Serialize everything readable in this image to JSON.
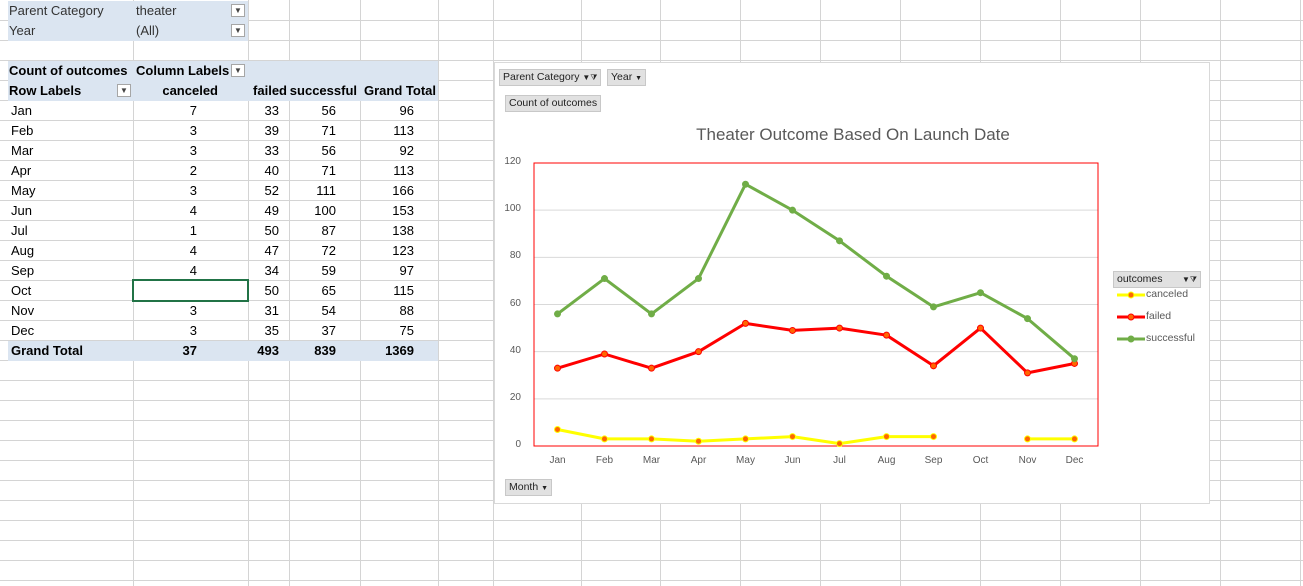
{
  "filters": [
    {
      "label": "Parent Category",
      "value": "theater"
    },
    {
      "label": "Year",
      "value": "(All)"
    }
  ],
  "pivot": {
    "value_label": "Count of outcomes",
    "column_labels": "Column Labels",
    "row_labels": "Row Labels",
    "columns": [
      "canceled",
      "failed",
      "successful",
      "Grand Total"
    ],
    "rows": [
      {
        "label": "Jan",
        "canceled": "7",
        "failed": "33",
        "successful": "56",
        "total": "96"
      },
      {
        "label": "Feb",
        "canceled": "3",
        "failed": "39",
        "successful": "71",
        "total": "113"
      },
      {
        "label": "Mar",
        "canceled": "3",
        "failed": "33",
        "successful": "56",
        "total": "92"
      },
      {
        "label": "Apr",
        "canceled": "2",
        "failed": "40",
        "successful": "71",
        "total": "113"
      },
      {
        "label": "May",
        "canceled": "3",
        "failed": "52",
        "successful": "111",
        "total": "166"
      },
      {
        "label": "Jun",
        "canceled": "4",
        "failed": "49",
        "successful": "100",
        "total": "153"
      },
      {
        "label": "Jul",
        "canceled": "1",
        "failed": "50",
        "successful": "87",
        "total": "138"
      },
      {
        "label": "Aug",
        "canceled": "4",
        "failed": "47",
        "successful": "72",
        "total": "123"
      },
      {
        "label": "Sep",
        "canceled": "4",
        "failed": "34",
        "successful": "59",
        "total": "97"
      },
      {
        "label": "Oct",
        "canceled": "",
        "failed": "50",
        "successful": "65",
        "total": "115"
      },
      {
        "label": "Nov",
        "canceled": "3",
        "failed": "31",
        "successful": "54",
        "total": "88"
      },
      {
        "label": "Dec",
        "canceled": "3",
        "failed": "35",
        "successful": "37",
        "total": "75"
      }
    ],
    "grand_total": {
      "label": "Grand Total",
      "canceled": "37",
      "failed": "493",
      "successful": "839",
      "total": "1369"
    }
  },
  "chart_buttons": {
    "parent_category": "Parent Category",
    "year": "Year",
    "count": "Count of outcomes",
    "month": "Month"
  },
  "legend_title": "outcomes",
  "colors": {
    "canceled": "#ffff00",
    "failed": "#ff0000",
    "successful": "#70ad47",
    "marker": "#ff6600",
    "plot_border": "#ff0000",
    "header_fill": "#dbe5f1"
  },
  "chart_data": {
    "type": "line",
    "title": "Theater Outcome Based On Launch Date",
    "categories": [
      "Jan",
      "Feb",
      "Mar",
      "Apr",
      "May",
      "Jun",
      "Jul",
      "Aug",
      "Sep",
      "Oct",
      "Nov",
      "Dec"
    ],
    "ylim": [
      0,
      120
    ],
    "yticks": [
      "0",
      "20",
      "40",
      "60",
      "80",
      "100",
      "120"
    ],
    "grid": true,
    "legend": "right",
    "series": [
      {
        "name": "canceled",
        "values": [
          7,
          3,
          3,
          2,
          3,
          4,
          1,
          4,
          4,
          null,
          3,
          3
        ]
      },
      {
        "name": "failed",
        "values": [
          33,
          39,
          33,
          40,
          52,
          49,
          50,
          47,
          34,
          50,
          31,
          35
        ]
      },
      {
        "name": "successful",
        "values": [
          56,
          71,
          56,
          71,
          111,
          100,
          87,
          72,
          59,
          65,
          54,
          37
        ]
      }
    ]
  }
}
